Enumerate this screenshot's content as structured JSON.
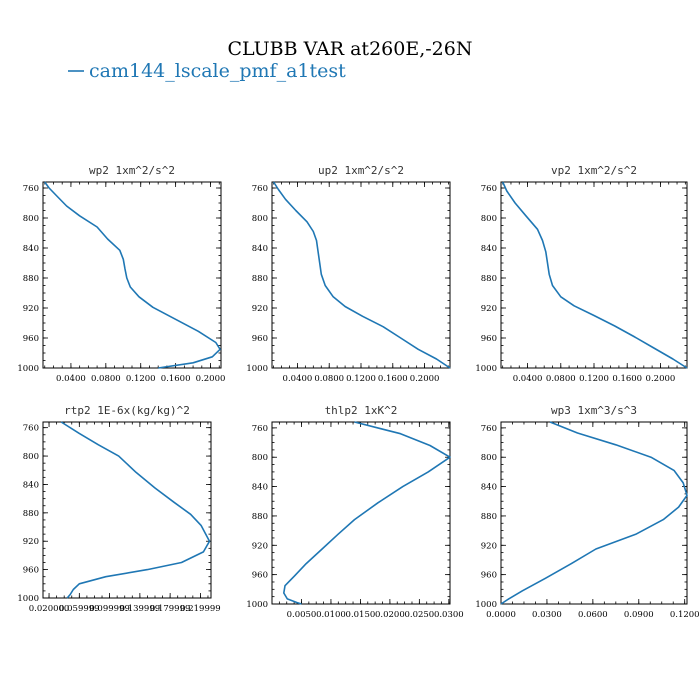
{
  "figure": {
    "title": "CLUBB VAR at260E,-26N",
    "legend": {
      "label": "cam144_lscale_pmf_a1test",
      "color": "#1f77b4"
    }
  },
  "chart_data": [
    {
      "type": "line",
      "title": "wp2  1xm^2/s^2",
      "xlabel": "",
      "ylabel": "",
      "xlim": [
        0.008,
        0.212
      ],
      "ylim": [
        1000,
        752
      ],
      "xticks": [
        "0.0400",
        "0.0800",
        "0.1200",
        "0.1600",
        "0.2000"
      ],
      "xtick_values": [
        0.04,
        0.08,
        0.12,
        0.16,
        0.2
      ],
      "yticks": [
        760,
        800,
        840,
        880,
        920,
        960,
        1000
      ],
      "series": [
        {
          "name": "cam144_lscale_pmf_a1test",
          "x": [
            0.01,
            0.015,
            0.025,
            0.035,
            0.05,
            0.07,
            0.082,
            0.096,
            0.1,
            0.102,
            0.104,
            0.108,
            0.118,
            0.134,
            0.16,
            0.186,
            0.206,
            0.211,
            0.202,
            0.18,
            0.14
          ],
          "y": [
            752,
            760,
            772,
            784,
            797,
            812,
            828,
            843,
            855,
            868,
            880,
            892,
            905,
            919,
            935,
            951,
            966,
            975,
            985,
            993,
            1000
          ]
        }
      ]
    },
    {
      "type": "line",
      "title": "up2  1xm^2/s^2",
      "xlabel": "",
      "ylabel": "",
      "xlim": [
        0.008,
        0.232
      ],
      "ylim": [
        1000,
        752
      ],
      "xticks": [
        "0.0400",
        "0.0800",
        "0.1200",
        "0.1600",
        "0.2000"
      ],
      "xtick_values": [
        0.04,
        0.08,
        0.12,
        0.16,
        0.2
      ],
      "yticks": [
        760,
        800,
        840,
        880,
        920,
        960,
        1000
      ],
      "series": [
        {
          "name": "cam144_lscale_pmf_a1test",
          "x": [
            0.01,
            0.016,
            0.025,
            0.038,
            0.052,
            0.06,
            0.064,
            0.066,
            0.068,
            0.07,
            0.075,
            0.085,
            0.1,
            0.122,
            0.148,
            0.17,
            0.192,
            0.215,
            0.232
          ],
          "y": [
            752,
            762,
            775,
            790,
            805,
            818,
            830,
            845,
            860,
            875,
            890,
            905,
            918,
            931,
            945,
            960,
            975,
            988,
            1000
          ]
        }
      ]
    },
    {
      "type": "line",
      "title": "vp2  1xm^2/s^2",
      "xlabel": "",
      "ylabel": "",
      "xlim": [
        0.008,
        0.232
      ],
      "ylim": [
        1000,
        752
      ],
      "xticks": [
        "0.0400",
        "0.0800",
        "0.1200",
        "0.1600",
        "0.2000"
      ],
      "xtick_values": [
        0.04,
        0.08,
        0.12,
        0.16,
        0.2
      ],
      "yticks": [
        760,
        800,
        840,
        880,
        920,
        960,
        1000
      ],
      "series": [
        {
          "name": "cam144_lscale_pmf_a1test",
          "x": [
            0.01,
            0.015,
            0.025,
            0.038,
            0.052,
            0.058,
            0.062,
            0.064,
            0.066,
            0.07,
            0.08,
            0.096,
            0.12,
            0.145,
            0.168,
            0.19,
            0.215,
            0.232
          ],
          "y": [
            752,
            764,
            780,
            797,
            815,
            830,
            845,
            860,
            875,
            890,
            905,
            917,
            930,
            944,
            958,
            972,
            988,
            1000
          ]
        }
      ]
    },
    {
      "type": "line",
      "title": "rtp2  1E-6x(kg/kg)^2",
      "xlabel": "",
      "ylabel": "",
      "xlim": [
        0.012,
        0.234
      ],
      "ylim": [
        1000,
        752
      ],
      "xticks": [
        "0.020000",
        "0.059999",
        "0.099999",
        "0.139999",
        "0.179999",
        "0.219999"
      ],
      "xtick_values": [
        0.02,
        0.059999,
        0.099999,
        0.139999,
        0.179999,
        0.219999
      ],
      "yticks": [
        760,
        800,
        840,
        880,
        920,
        960,
        1000
      ],
      "series": [
        {
          "name": "cam144_lscale_pmf_a1test",
          "x": [
            0.036,
            0.06,
            0.085,
            0.112,
            0.135,
            0.16,
            0.185,
            0.207,
            0.221,
            0.232,
            0.224,
            0.195,
            0.15,
            0.095,
            0.06,
            0.052,
            0.048,
            0.044
          ],
          "y": [
            752,
            768,
            784,
            800,
            823,
            845,
            865,
            882,
            898,
            920,
            935,
            950,
            960,
            970,
            980,
            988,
            995,
            1000
          ]
        }
      ]
    },
    {
      "type": "line",
      "title": "thlp2  1xK^2",
      "xlabel": "",
      "ylabel": "",
      "xlim": [
        0.0,
        0.0302
      ],
      "ylim": [
        1000,
        752
      ],
      "xticks": [
        "0.0050",
        "0.0100",
        "0.0150",
        "0.0200",
        "0.0250",
        "0.0300"
      ],
      "xtick_values": [
        0.005,
        0.01,
        0.015,
        0.02,
        0.025,
        0.03
      ],
      "yticks": [
        760,
        800,
        840,
        880,
        920,
        960,
        1000
      ],
      "series": [
        {
          "name": "cam144_lscale_pmf_a1test",
          "x": [
            0.014,
            0.0218,
            0.0268,
            0.0302,
            0.0265,
            0.0222,
            0.018,
            0.014,
            0.0112,
            0.0085,
            0.0058,
            0.0038,
            0.0022,
            0.002,
            0.0026,
            0.0042,
            0.005
          ],
          "y": [
            752,
            768,
            784,
            800,
            820,
            840,
            862,
            885,
            905,
            925,
            945,
            962,
            975,
            985,
            993,
            998,
            1000
          ]
        }
      ]
    },
    {
      "type": "line",
      "title": "wp3  1xm^3/s^3",
      "xlabel": "",
      "ylabel": "",
      "xlim": [
        0.0,
        0.1215
      ],
      "ylim": [
        1000,
        752
      ],
      "xticks": [
        "0.0000",
        "0.0300",
        "0.0600",
        "0.0900",
        "0.1200"
      ],
      "xtick_values": [
        0.0,
        0.03,
        0.06,
        0.09,
        0.12
      ],
      "yticks": [
        760,
        800,
        840,
        880,
        920,
        960,
        1000
      ],
      "series": [
        {
          "name": "cam144_lscale_pmf_a1test",
          "x": [
            0.032,
            0.05,
            0.075,
            0.098,
            0.113,
            0.119,
            0.1215,
            0.116,
            0.106,
            0.088,
            0.062,
            0.046,
            0.029,
            0.014,
            0.005,
            0.0
          ],
          "y": [
            752,
            767,
            783,
            800,
            818,
            835,
            852,
            868,
            885,
            905,
            925,
            945,
            965,
            982,
            993,
            1000
          ]
        }
      ]
    }
  ]
}
